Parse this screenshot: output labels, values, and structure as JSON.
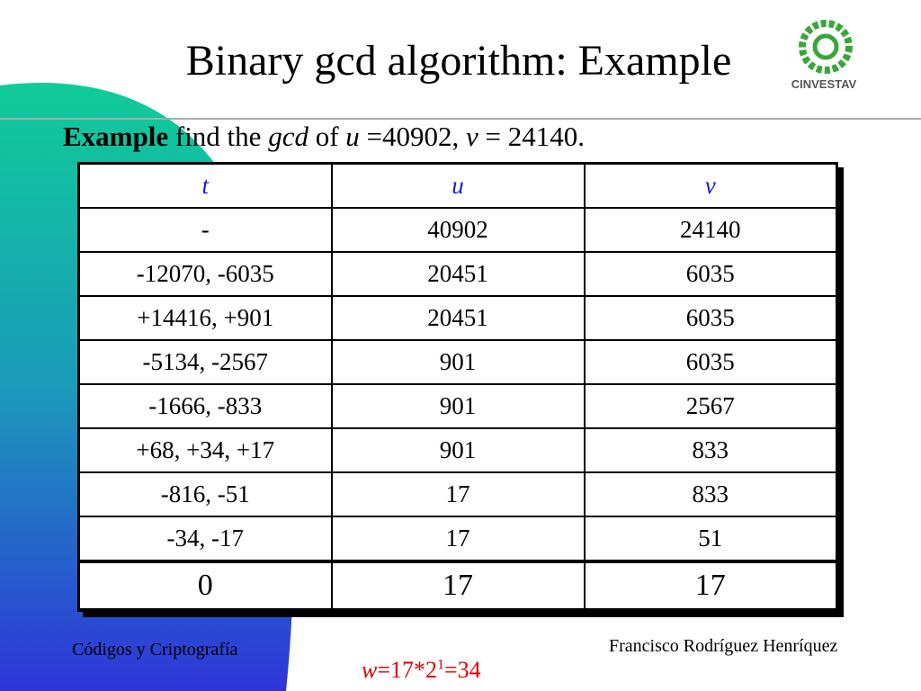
{
  "header": {
    "title": "Binary gcd algorithm: Example",
    "logo_text": "CINVESTAV"
  },
  "example_line": {
    "lead": "Example",
    "part1": "find the",
    "gcd": "gcd",
    "part2": "of",
    "u": "u",
    "part3": "=40902,",
    "v": "v",
    "part4": "= 24140."
  },
  "table": {
    "header": [
      "t",
      "u",
      "v"
    ],
    "rows": [
      [
        "-",
        "40902",
        "24140"
      ],
      [
        "-12070, -6035",
        "20451",
        "6035"
      ],
      [
        "+14416, +901",
        "20451",
        "6035"
      ],
      [
        "-5134, -2567",
        "901",
        "6035"
      ],
      [
        "-1666, -833",
        "901",
        "2567"
      ],
      [
        "+68, +34, +17",
        "901",
        "833"
      ],
      [
        "-816, -51",
        "17",
        "833"
      ],
      [
        "-34, -17",
        "17",
        "51"
      ]
    ],
    "final_row": [
      "0",
      "17",
      "17"
    ]
  },
  "footer": {
    "left": "Códigos y Criptografía",
    "right": "Francisco Rodríguez Henríquez",
    "result": {
      "var": "w",
      "expr": "=17*2",
      "exp": "1",
      "tail": "=34"
    }
  }
}
